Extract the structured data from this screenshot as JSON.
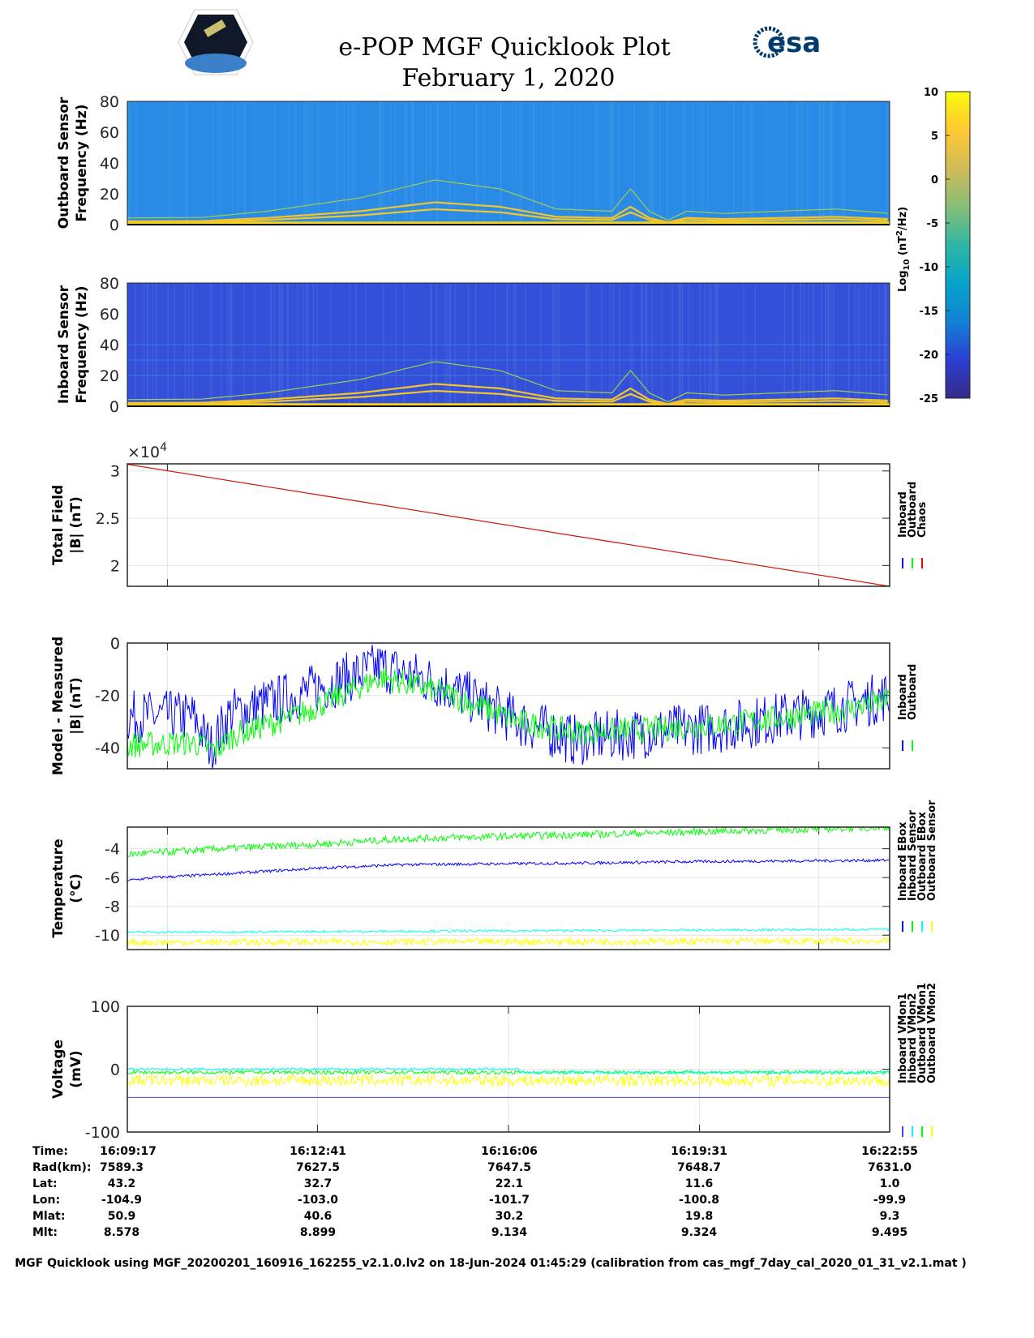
{
  "header": {
    "title": "e-POP MGF Quicklook Plot",
    "date": "February 1, 2020",
    "left_logo": "CASSIOPE",
    "right_logo": "esa"
  },
  "colorbar": {
    "label": "Log10 (nT2/Hz)",
    "label_main": "Log",
    "label_sub": "10",
    "label_unit": " (nT",
    "label_sup": "2",
    "label_end": "/Hz)",
    "ticks": [
      "10",
      "5",
      "0",
      "-5",
      "-10",
      "-15",
      "-20",
      "-25"
    ],
    "range": [
      -25,
      10
    ],
    "colors": [
      "#352a87",
      "#2b3fd4",
      "#1481d6",
      "#06a4ca",
      "#2eb7a4",
      "#87bf77",
      "#d1bb59",
      "#fec832",
      "#f9fb0e"
    ]
  },
  "chart_data": [
    {
      "id": "outboard-spectrogram",
      "type": "heatmap",
      "ylabel_lines": [
        "Outboard Sensor",
        "Frequency (Hz)"
      ],
      "ylim": [
        0,
        80
      ],
      "yticks": [
        "0",
        "20",
        "40",
        "60",
        "80"
      ],
      "background_level": -13,
      "background_color": "#2a8be6",
      "harmonic_multipliers": [
        1,
        1.45,
        2.9
      ],
      "fundamental_hz": [
        [
          0,
          1.5
        ],
        [
          80,
          1.6
        ],
        [
          150,
          3
        ],
        [
          250,
          6
        ],
        [
          330,
          10
        ],
        [
          400,
          8
        ],
        [
          460,
          3.5
        ],
        [
          520,
          3
        ],
        [
          540,
          8
        ],
        [
          560,
          3
        ],
        [
          580,
          1
        ],
        [
          600,
          3
        ],
        [
          640,
          2.5
        ],
        [
          700,
          3
        ],
        [
          760,
          3.5
        ],
        [
          818,
          2.5
        ]
      ]
    },
    {
      "id": "inboard-spectrogram",
      "type": "heatmap",
      "ylabel_lines": [
        "Inboard Sensor",
        "Frequency (Hz)"
      ],
      "ylim": [
        0,
        80
      ],
      "yticks": [
        "0",
        "20",
        "40",
        "60",
        "80"
      ],
      "background_level": -19,
      "background_color": "#3550d8",
      "harmonic_multipliers": [
        1,
        1.45,
        2.9
      ],
      "fundamental_hz": [
        [
          0,
          1.5
        ],
        [
          80,
          1.6
        ],
        [
          150,
          3
        ],
        [
          250,
          6
        ],
        [
          330,
          10
        ],
        [
          400,
          8
        ],
        [
          460,
          3.5
        ],
        [
          520,
          3
        ],
        [
          540,
          8
        ],
        [
          560,
          3
        ],
        [
          580,
          1
        ],
        [
          600,
          3
        ],
        [
          640,
          2.5
        ],
        [
          700,
          3
        ],
        [
          760,
          3.5
        ],
        [
          818,
          2.5
        ]
      ]
    },
    {
      "id": "total-field",
      "type": "line",
      "ylabel_lines": [
        "Total Field",
        "|B| (nT)"
      ],
      "exponent_label": "×10",
      "exponent_power": "4",
      "ylim": [
        17800,
        30750
      ],
      "yticks": [
        {
          "v": 30000,
          "label": "3"
        },
        {
          "v": 25000,
          "label": "2.5"
        },
        {
          "v": 20000,
          "label": "2"
        }
      ],
      "xgrid": [
        43,
        742
      ],
      "legend": [
        "Inboard",
        "Outboard",
        "Chaos"
      ],
      "series": [
        {
          "name": "Inboard",
          "color": "#0000ff",
          "points": [
            [
              0,
              30700
            ],
            [
              818,
              17800
            ]
          ],
          "noise": 0
        },
        {
          "name": "Outboard",
          "color": "#00ff00",
          "points": [
            [
              0,
              30700
            ],
            [
              818,
              17800
            ]
          ],
          "noise": 0
        },
        {
          "name": "Chaos",
          "color": "#ff0000",
          "points": [
            [
              0,
              30700
            ],
            [
              818,
              17800
            ]
          ],
          "noise": 0
        }
      ]
    },
    {
      "id": "model-minus-measured",
      "type": "line",
      "ylabel_lines": [
        "Model - Measured",
        "|B| (nT)"
      ],
      "ylim": [
        -48,
        0
      ],
      "yticks": [
        {
          "v": 0,
          "label": "0"
        },
        {
          "v": -20,
          "label": "-20"
        },
        {
          "v": -40,
          "label": "-40"
        }
      ],
      "xgrid": [
        43,
        742
      ],
      "legend": [
        "Inboard",
        "Outboard"
      ],
      "series": [
        {
          "name": "Inboard",
          "color": "#0000ff",
          "points": [
            [
              0,
              -28
            ],
            [
              70,
              -28
            ],
            [
              90,
              -40
            ],
            [
              110,
              -27
            ],
            [
              180,
              -20
            ],
            [
              272,
              -9
            ],
            [
              340,
              -16
            ],
            [
              420,
              -30
            ],
            [
              480,
              -37
            ],
            [
              560,
              -34
            ],
            [
              640,
              -32
            ],
            [
              760,
              -25
            ],
            [
              818,
              -20
            ]
          ],
          "noise": 10
        },
        {
          "name": "Outboard",
          "color": "#00ff00",
          "points": [
            [
              0,
              -39
            ],
            [
              70,
              -38
            ],
            [
              95,
              -41
            ],
            [
              115,
              -35
            ],
            [
              180,
              -28
            ],
            [
              272,
              -13
            ],
            [
              340,
              -19
            ],
            [
              420,
              -30
            ],
            [
              480,
              -34
            ],
            [
              560,
              -33
            ],
            [
              640,
              -31
            ],
            [
              760,
              -26
            ],
            [
              818,
              -22
            ]
          ],
          "noise": 5
        }
      ]
    },
    {
      "id": "temperature",
      "type": "line",
      "ylabel_lines": [
        "Temperature",
        "(°C)"
      ],
      "ylim": [
        -11,
        -2.5
      ],
      "yticks": [
        {
          "v": -4,
          "label": "-4"
        },
        {
          "v": -6,
          "label": "-6"
        },
        {
          "v": -8,
          "label": "-8"
        },
        {
          "v": -10,
          "label": "-10"
        }
      ],
      "xgrid": [
        43,
        742
      ],
      "legend": [
        "Inboard EBox",
        "Inboard Sensor",
        "Outboard EBox",
        "Outboard Sensor"
      ],
      "series": [
        {
          "name": "Inboard EBox",
          "color": "#0000ff",
          "points": [
            [
              0,
              -6.2
            ],
            [
              30,
              -6.0
            ],
            [
              90,
              -5.8
            ],
            [
              140,
              -5.6
            ],
            [
              220,
              -5.3
            ],
            [
              300,
              -5.1
            ],
            [
              480,
              -5.0
            ],
            [
              600,
              -4.9
            ],
            [
              818,
              -4.8
            ]
          ],
          "noise": 0.1
        },
        {
          "name": "Inboard Sensor",
          "color": "#00ff00",
          "points": [
            [
              0,
              -4.4
            ],
            [
              100,
              -4.0
            ],
            [
              200,
              -3.7
            ],
            [
              300,
              -3.3
            ],
            [
              500,
              -3.0
            ],
            [
              818,
              -2.5
            ]
          ],
          "noise": 0.25
        },
        {
          "name": "Outboard EBox",
          "color": "#00ffff",
          "points": [
            [
              0,
              -9.8
            ],
            [
              818,
              -9.6
            ]
          ],
          "noise": 0.08
        },
        {
          "name": "Outboard Sensor",
          "color": "#ffff00",
          "points": [
            [
              0,
              -10.5
            ],
            [
              818,
              -10.4
            ]
          ],
          "noise": 0.25
        }
      ]
    },
    {
      "id": "voltage",
      "type": "line",
      "ylabel_lines": [
        "Voltage",
        "(mV)"
      ],
      "ylim": [
        -100,
        100
      ],
      "yticks": [
        {
          "v": 100,
          "label": "100"
        },
        {
          "v": 0,
          "label": "0"
        },
        {
          "v": -100,
          "label": "-100"
        }
      ],
      "xgrid": [
        204,
        409,
        614
      ],
      "legend": [
        "Inboard VMon1",
        "Inboard VMon2",
        "Outboard VMon1",
        "Outboard VMon2"
      ],
      "series": [
        {
          "name": "Inboard VMon1",
          "color": "#4040ff",
          "points": [
            [
              0,
              -45
            ],
            [
              818,
              -45
            ]
          ],
          "noise": 0
        },
        {
          "name": "Outboard VMon1",
          "color": "#00ff00",
          "points": [
            [
              0,
              -5
            ],
            [
              818,
              -5
            ]
          ],
          "noise": 3
        },
        {
          "name": "Inboard VMon2",
          "color": "#00ffff",
          "points": [
            [
              0,
              0
            ],
            [
              420,
              0
            ],
            [
              421,
              -5
            ],
            [
              818,
              -5
            ]
          ],
          "noise": 2
        },
        {
          "name": "Outboard VMon2",
          "color": "#ffff00",
          "points": [
            [
              0,
              -18
            ],
            [
              818,
              -18
            ]
          ],
          "noise": 9
        }
      ]
    }
  ],
  "table": {
    "labels": [
      "Time:",
      "Rad(km):",
      "Lat:",
      "Lon:",
      "Mlat:",
      "Mlt:"
    ],
    "columns": [
      [
        "16:09:17",
        "7589.3",
        "43.2",
        "-104.9",
        "50.9",
        "8.578"
      ],
      [
        "16:12:41",
        "7627.5",
        "32.7",
        "-103.0",
        "40.6",
        "8.899"
      ],
      [
        "16:16:06",
        "7647.5",
        "22.1",
        "-101.7",
        "30.2",
        "9.134"
      ],
      [
        "16:19:31",
        "7648.7",
        "11.6",
        "-100.8",
        "19.8",
        "9.324"
      ],
      [
        "16:22:55",
        "7631.0",
        "1.0",
        "-99.9",
        "9.3",
        "9.495"
      ]
    ]
  },
  "footer": "MGF Quicklook using MGF_20200201_160916_162255_v2.1.0.lv2 on 18-Jun-2024 01:45:29 (calibration from cas_mgf_7day_cal_2020_01_31_v2.1.mat )"
}
